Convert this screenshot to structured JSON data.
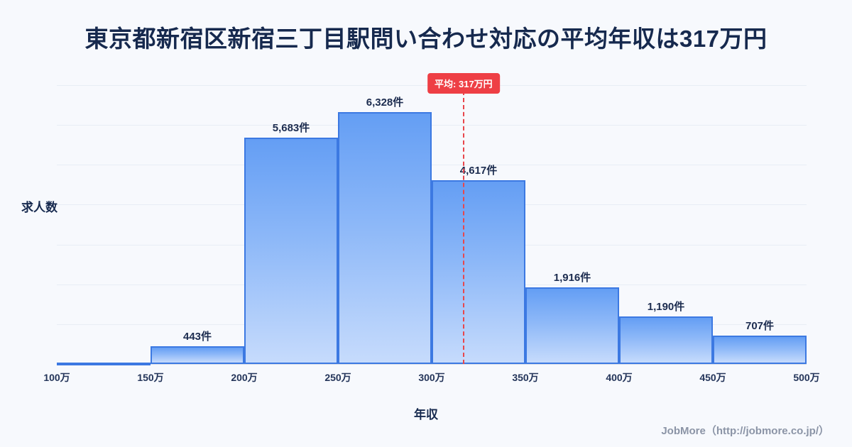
{
  "title": "東京都新宿区新宿三丁目駅問い合わせ対応の平均年収は317万円",
  "chart_data": {
    "type": "bar",
    "title": "東京都新宿区新宿三丁目駅問い合わせ対応の平均年収は317万円",
    "xlabel": "年収",
    "ylabel": "求人数",
    "ylim": [
      0,
      7000
    ],
    "x_axis_range": [
      100,
      500
    ],
    "bin_edge_labels": [
      "100万",
      "150万",
      "200万",
      "250万",
      "300万",
      "350万",
      "400万",
      "450万",
      "500万"
    ],
    "values": [
      0,
      443,
      5683,
      6328,
      4617,
      1916,
      1190,
      707
    ],
    "bar_labels": [
      "",
      "443件",
      "5,683件",
      "6,328件",
      "4,617件",
      "1,916件",
      "1,190件",
      "707件"
    ],
    "mean": {
      "value": 317,
      "badge_label": "平均: 317万円"
    },
    "grid": "horizontal",
    "colors": {
      "bar_border": "#3c79e2",
      "bar_gradient_top": "#649ef4",
      "bar_gradient_bottom": "#c6dbfc",
      "mean_line": "#e8474c",
      "mean_badge_bg": "#ee3f45",
      "title_text": "#16294e",
      "background": "#f7f9fd"
    }
  },
  "footer": {
    "credit": "JobMore（http://jobmore.co.jp/）"
  }
}
